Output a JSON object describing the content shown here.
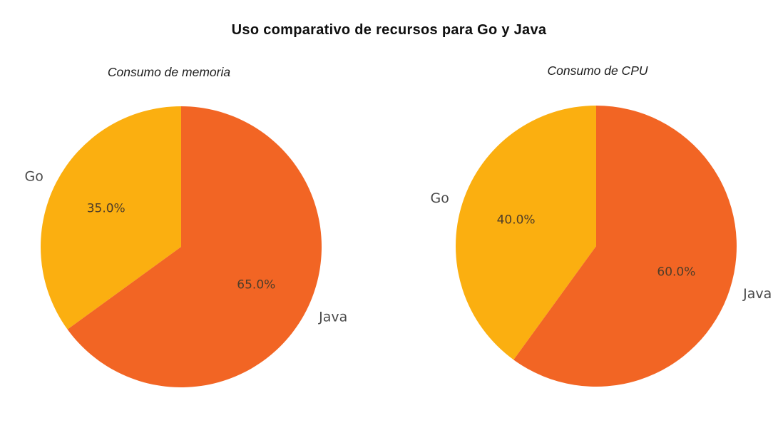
{
  "figure": {
    "title": "Uso comparativo de recursos para Go y Java"
  },
  "style": {
    "background": "#ffffff",
    "category_label_color": "#4a4a4a",
    "percent_label_color": "#4e3d29",
    "title_color": "#0f0f0f"
  },
  "chart_data": [
    {
      "type": "pie",
      "title": "Consumo de memoria",
      "labels": [
        "Go",
        "Java"
      ],
      "values": [
        35.0,
        65.0
      ],
      "value_labels": [
        "35.0%",
        "65.0%"
      ],
      "colors": [
        "#FBAF10",
        "#F26524"
      ],
      "start_angle": 90,
      "direction": "counterclockwise",
      "label_distance": 1.1,
      "pct_distance": 0.6,
      "legend": "none"
    },
    {
      "type": "pie",
      "title": "Consumo de CPU",
      "labels": [
        "Go",
        "Java"
      ],
      "values": [
        40.0,
        60.0
      ],
      "value_labels": [
        "40.0%",
        "60.0%"
      ],
      "colors": [
        "#FBAF10",
        "#F26524"
      ],
      "start_angle": 90,
      "direction": "counterclockwise",
      "label_distance": 1.1,
      "pct_distance": 0.6,
      "legend": "none"
    }
  ]
}
